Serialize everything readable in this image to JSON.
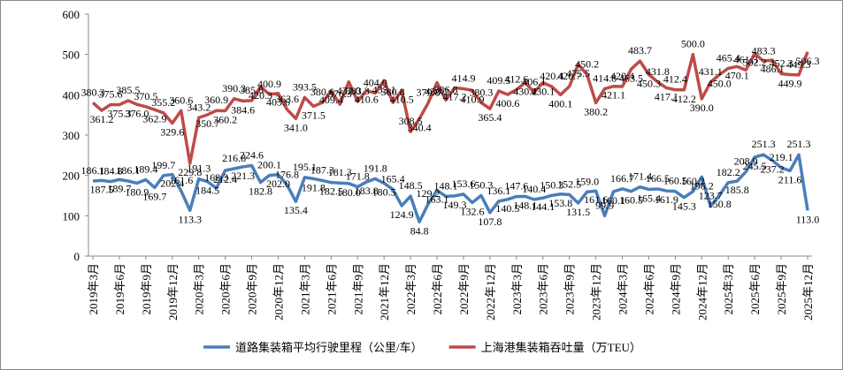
{
  "chart_data": {
    "type": "line",
    "categories": [
      "2019年3月",
      null,
      null,
      "2019年6月",
      null,
      null,
      "2019年9月",
      null,
      null,
      "2019年12月",
      null,
      null,
      "2020年3月",
      null,
      null,
      "2020年6月",
      null,
      null,
      "2020年9月",
      null,
      null,
      "2020年12月",
      null,
      null,
      "2021年3月",
      null,
      null,
      "2021年6月",
      null,
      null,
      "2021年9月",
      null,
      null,
      "2021年12月",
      null,
      null,
      "2022年3月",
      null,
      null,
      "2022年6月",
      null,
      null,
      "2022年9月",
      null,
      null,
      "2022年12月",
      null,
      null,
      "2023年3月",
      null,
      null,
      "2023年6月",
      null,
      null,
      "2023年9月",
      null,
      null,
      "2023年12月",
      null,
      null,
      "2024年3月",
      null,
      null,
      "2024年6月",
      null,
      null,
      "2024年9月",
      null,
      null,
      "2024年12月",
      null,
      null,
      "2025年3月",
      null,
      null,
      "2025年6月",
      null,
      null,
      "2025年9月",
      null,
      null,
      "2025年12月"
    ],
    "series": [
      {
        "name": "道路集装箱平均行驶里程（公里/车）",
        "color": "#4a7ebb",
        "values": [
          186.1,
          187.5,
          184.8,
          189.7,
          186.1,
          180.9,
          189.4,
          169.7,
          199.7,
          202.4,
          161.6,
          113.3,
          191.3,
          184.5,
          168.3,
          212.4,
          216.8,
          221.3,
          224.6,
          182.8,
          200.1,
          202.0,
          176.8,
          135.4,
          195.1,
          191.8,
          187.3,
          182.5,
          181.3,
          180.0,
          171.8,
          183.8,
          191.8,
          180.5,
          165.4,
          124.9,
          148.5,
          84.8,
          129.2,
          163.1,
          148.1,
          149.3,
          153.6,
          132.6,
          150.3,
          107.8,
          136.1,
          140.5,
          147.6,
          148.1,
          140.4,
          144.1,
          150.3,
          153.8,
          152.5,
          131.5,
          159.0,
          161.6,
          99.9,
          160.1,
          166.7,
          160.5,
          171.4,
          165.4,
          166.5,
          161.9,
          160.5,
          145.3,
          160.2,
          196.2,
          123.7,
          150.8,
          182.2,
          185.8,
          208.9,
          245.5,
          251.3,
          237.2,
          219.1,
          211.6,
          251.3,
          113.0
        ],
        "value_labels": [
          "186.1",
          "187.5",
          "184.8",
          "189.7",
          "186.1",
          "180.9",
          "189.4",
          "169.7",
          "199.7",
          "202.4",
          "161.6",
          "113.3",
          "191.3",
          "184.5",
          "168.3",
          "212.4",
          "216.8",
          "221.3",
          "224.6",
          "182.8",
          "200.1",
          "202.0",
          "176.8",
          "135.4",
          "195.1",
          "191.8",
          "187.3",
          "182.5",
          "181.3",
          "180.0",
          "171.8",
          "183.8",
          "191.8",
          "180.5",
          "165.4",
          "124.9",
          "148.5",
          "84.8",
          "129.2",
          "163.1",
          "148.1",
          "149.3",
          "153.6",
          "132.6",
          "150.3",
          "107.8",
          "136.1",
          "140.5",
          "147.6",
          "148.1",
          "140.4",
          "144.1",
          "150.3",
          "153.8",
          "152.5",
          "131.5",
          "159.0",
          "161.6",
          "99.9",
          "160.1",
          "166.7",
          "160.5",
          "171.4",
          "165.4",
          "166.5",
          "161.9",
          "160.5",
          "145.3",
          "160.2",
          "196.2",
          "123.7",
          "150.8",
          "182.2",
          "185.8",
          "208.9",
          "245.5",
          "251.3",
          "237.2",
          "219.1",
          "211.6",
          "251.3",
          "113.0"
        ]
      },
      {
        "name": "上海港集装箱吞吐量（万TEU）",
        "color": "#be4b48",
        "values": [
          380.3,
          361.2,
          375.6,
          375.3,
          385.5,
          376.0,
          370.5,
          362.9,
          355.2,
          329.6,
          360.6,
          229.8,
          343.2,
          350.7,
          360.9,
          360.2,
          390.3,
          384.6,
          385.8,
          420.3,
          400.9,
          403.6,
          363.6,
          341.0,
          393.5,
          371.5,
          380.6,
          409.4,
          376.3,
          432.0,
          383.3,
          410.6,
          404.0,
          435.1,
          380.8,
          410.5,
          308.5,
          340.4,
          379.8,
          430.2,
          386.8,
          417.2,
          414.9,
          410.9,
          380.3,
          365.4,
          409.5,
          400.6,
          412.6,
          430.2,
          406.1,
          430.1,
          420.4,
          400.1,
          420.7,
          475.5,
          450.2,
          380.2,
          414.8,
          421.1,
          420.4,
          463.5,
          483.7,
          450.3,
          431.8,
          417.1,
          412.4,
          412.2,
          500.0,
          390.0,
          431.1,
          450.0,
          465.4,
          470.1,
          461.3,
          502.2,
          483.3,
          486.1,
          452.3,
          449.9,
          449.3,
          506.3
        ],
        "value_labels": [
          "380.3",
          "361.2",
          "375.6",
          "375.3",
          "385.5",
          "376.0",
          "370.5",
          "362.9",
          "355.2",
          "329.6",
          "360.6",
          "229.8",
          "343.2",
          "350.7",
          "360.9",
          "360.2",
          "390.3",
          "384.6",
          "385.8",
          "420.3",
          "400.9",
          "403.6",
          "363.6",
          "341.0",
          "393.5",
          "371.5",
          "380.6",
          "409.4",
          "376.3",
          "432.0",
          "383.3",
          "410.6",
          "404.0",
          "435.1",
          "380.8",
          "410.5",
          "308.5",
          "340.4",
          "379.8",
          "430.2",
          "386.8",
          "417.2",
          "414.9",
          "410.9",
          "380.3",
          "365.4",
          "409.5",
          "400.6",
          "412.6",
          "430.2",
          "406.1",
          "430.1",
          "420.4",
          "400.1",
          "420.7",
          "475.5",
          "450.2",
          "380.2",
          "414.8",
          "421.1",
          "420.4",
          "463.5",
          "483.7",
          "450.3",
          "431.8",
          "417.1",
          "412.4",
          "412.2",
          "500.0",
          "390.0",
          "431.1",
          "450.0",
          "465.4",
          "470.1",
          "461.3",
          "502.2",
          "483.3",
          "486.1",
          "452.3",
          "449.9",
          "449.3",
          "506.3"
        ]
      }
    ],
    "ylim": [
      0,
      600
    ],
    "yticks": [
      0,
      100,
      200,
      300,
      400,
      500,
      600
    ],
    "grid": false,
    "legend": "bottom"
  }
}
